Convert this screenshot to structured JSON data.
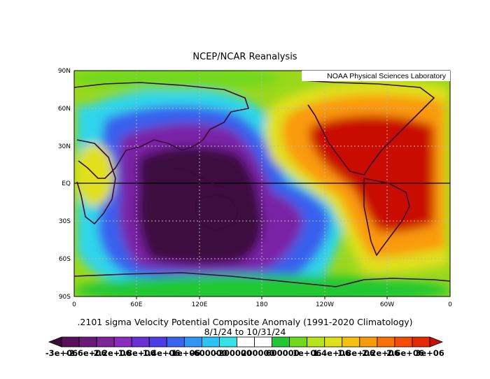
{
  "title": "NCEP/NCAR Reanalysis",
  "credit": "NOAA Physical Sciences Laboratory",
  "lat_labels": [
    "90N",
    "60N",
    "30N",
    "EQ",
    "30S",
    "60S",
    "90S"
  ],
  "lon_labels": [
    "0",
    "60E",
    "120E",
    "180",
    "120W",
    "60W",
    "0"
  ],
  "subtitle_line1": ".2101 sigma Velocity Potential  Composite Anomaly (1991-2020 Climatology)",
  "subtitle_line2": "8/1/24  to 10/31/24",
  "colorbar": {
    "labels": [
      "-3e+06",
      "-2.6e+06",
      "-2.2e+06",
      "-1.8e+06",
      "-1.4e+06",
      "-1e+06",
      "-600000",
      "-200000",
      "200000",
      "600000",
      "1e+06",
      "1.4e+06",
      "1.8e+06",
      "2.2e+06",
      "2.6e+06",
      "3e+06"
    ],
    "colors": [
      "#3b0a3a",
      "#5a0f5a",
      "#6c1a78",
      "#7d2496",
      "#8a2dbc",
      "#6a30d8",
      "#4a3ce6",
      "#3a64f0",
      "#2f96f6",
      "#2ac4f6",
      "#36e2e6",
      "#ffffff",
      "#ffffff",
      "#22c832",
      "#72d81e",
      "#b8e41c",
      "#e0e01a",
      "#f4c20e",
      "#fa9a0a",
      "#f87008",
      "#f44c06",
      "#e42a04",
      "#c80e02"
    ]
  }
}
